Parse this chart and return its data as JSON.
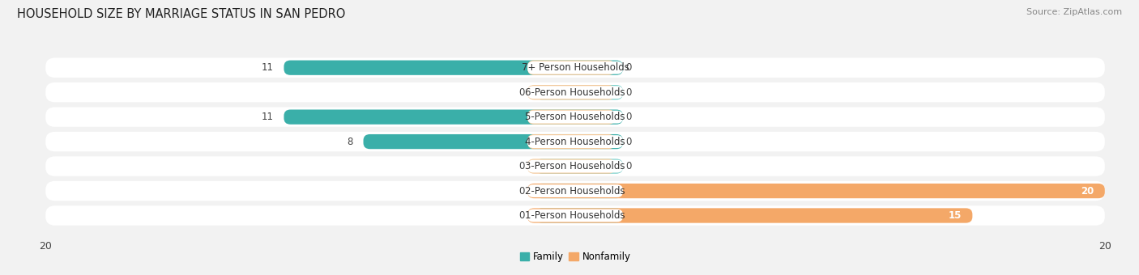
{
  "title": "HOUSEHOLD SIZE BY MARRIAGE STATUS IN SAN PEDRO",
  "source": "Source: ZipAtlas.com",
  "categories": [
    "7+ Person Households",
    "6-Person Households",
    "5-Person Households",
    "4-Person Households",
    "3-Person Households",
    "2-Person Households",
    "1-Person Households"
  ],
  "family": [
    11,
    0,
    11,
    8,
    0,
    0,
    0
  ],
  "nonfamily": [
    0,
    0,
    0,
    0,
    0,
    20,
    15
  ],
  "family_color": "#3AAFA9",
  "nonfamily_color": "#F4A868",
  "family_color_light": "#7ACFCA",
  "nonfamily_color_light": "#F4C99A",
  "background_color": "#f2f2f2",
  "row_bg_color": "#ffffff",
  "xlim": 20,
  "title_fontsize": 10.5,
  "label_fontsize": 8.5,
  "tick_fontsize": 9,
  "source_fontsize": 8,
  "min_bar_width": 1.5
}
